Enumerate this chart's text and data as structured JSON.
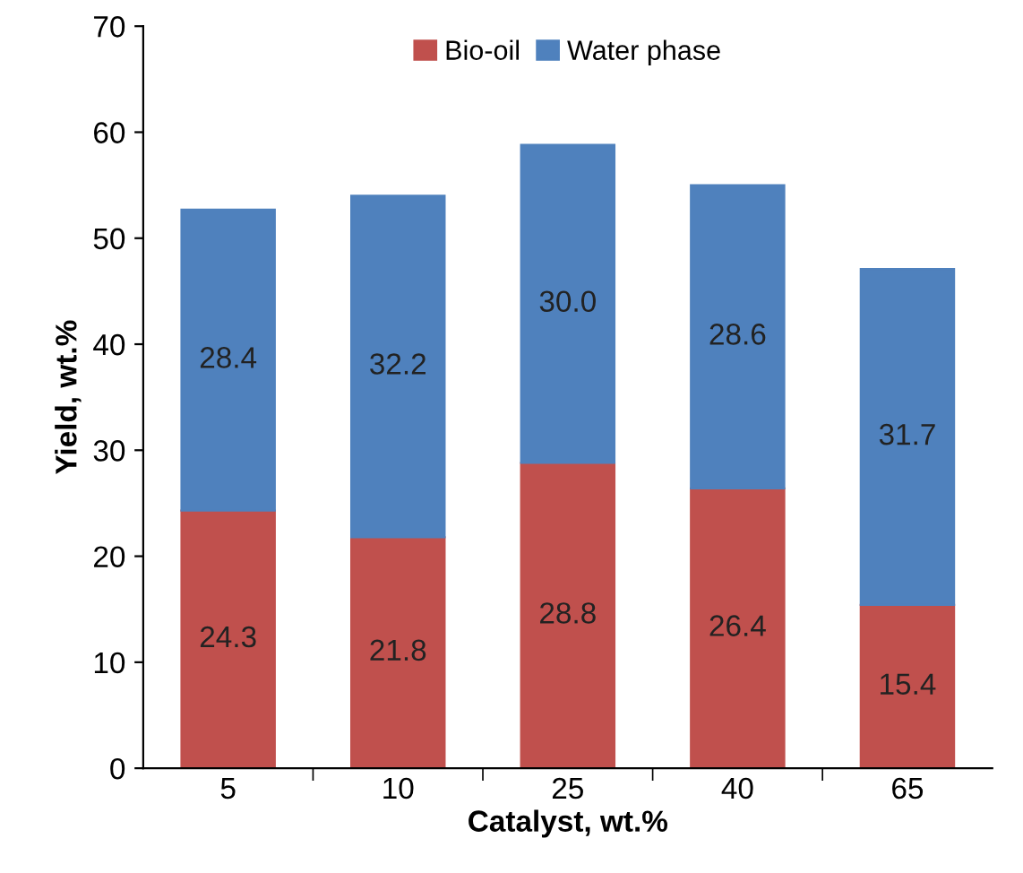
{
  "chart_data": {
    "type": "bar",
    "stacked": true,
    "xlabel": "Catalyst, wt.%",
    "ylabel": "Yield, wt.%",
    "categories": [
      "5",
      "10",
      "25",
      "40",
      "65"
    ],
    "series": [
      {
        "name": "Bio-oil",
        "color": "#c0504d",
        "values": [
          24.3,
          21.8,
          28.8,
          26.4,
          15.4
        ],
        "value_labels": [
          "24.3",
          "21.8",
          "28.8",
          "26.4",
          "15.4"
        ]
      },
      {
        "name": "Water phase",
        "color": "#4f81bd",
        "values": [
          28.4,
          32.2,
          30.0,
          28.6,
          31.7
        ],
        "value_labels": [
          "28.4",
          "32.2",
          "30.0",
          "28.6",
          "31.7"
        ]
      }
    ],
    "ylim": [
      0,
      70
    ],
    "yticks": [
      0,
      10,
      20,
      30,
      40,
      50,
      60,
      70
    ],
    "legend": "top",
    "grid": false
  }
}
